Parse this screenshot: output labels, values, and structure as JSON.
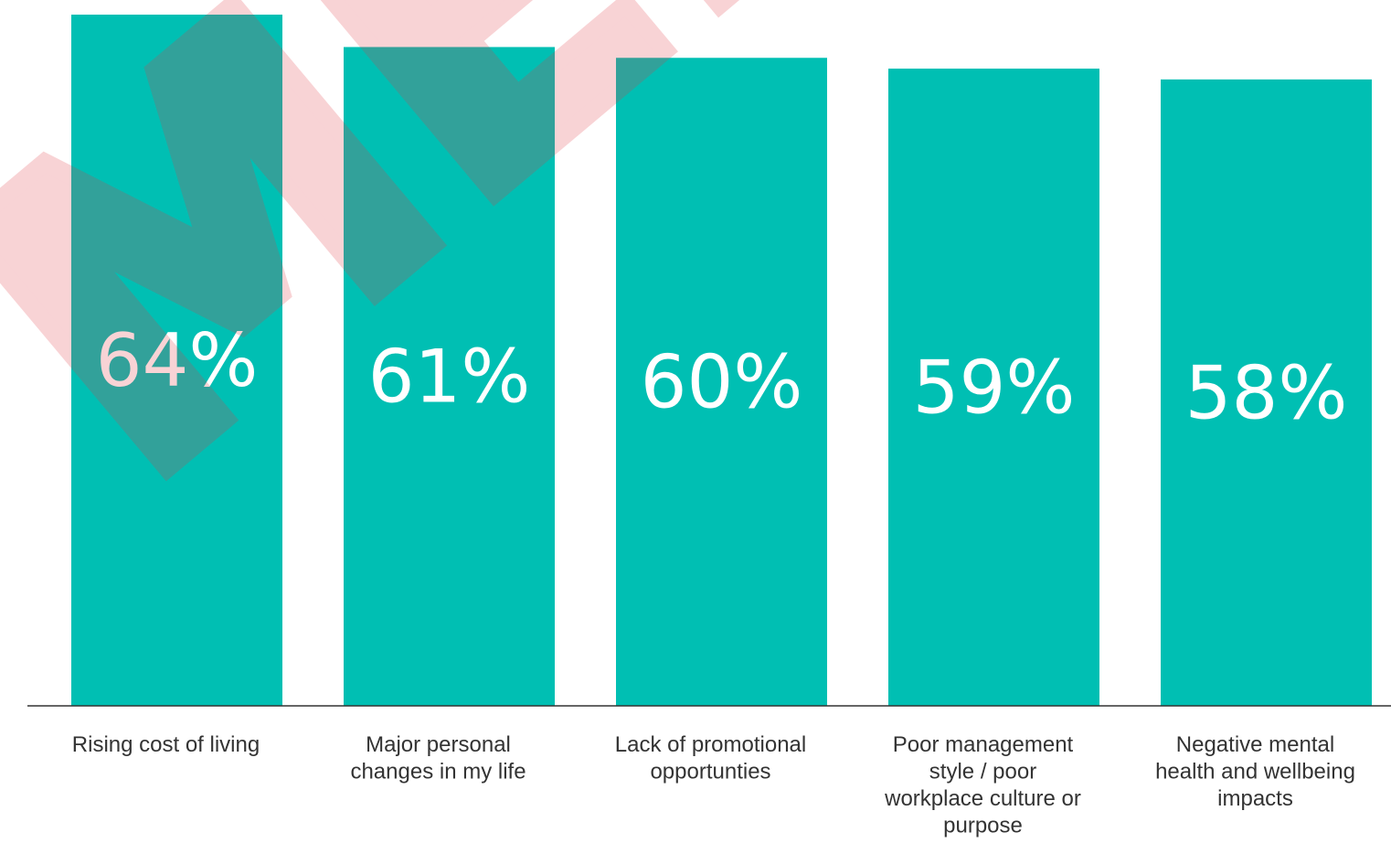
{
  "chart_data": {
    "type": "bar",
    "title": "",
    "xlabel": "",
    "ylabel": "",
    "categories": [
      "Rising cost of living",
      "Major personal changes in my life",
      "Lack of promotional opportunties",
      "Poor management style / poor workplace culture or purpose",
      "Negative mental health and wellbeing impacts"
    ],
    "values": [
      64,
      61,
      60,
      59,
      58
    ],
    "value_labels": [
      "64%",
      "61%",
      "60%",
      "59%",
      "58%"
    ],
    "category_label_lines": [
      [
        "Rising cost of living"
      ],
      [
        "Major personal",
        "changes in my life"
      ],
      [
        "Lack of promotional",
        "opportunties"
      ],
      [
        "Poor management",
        "style / poor",
        "workplace culture or",
        "purpose"
      ],
      [
        "Negative mental",
        "health and wellbeing",
        "impacts"
      ]
    ],
    "grid": false,
    "legend": "none",
    "ylim": [
      0,
      64
    ]
  },
  "colors": {
    "bar": "#00BFB3",
    "baseline": "#333333",
    "label_text": "#333333",
    "value_text": "#ffffff",
    "watermark": "#E23A44"
  },
  "watermark": {
    "text": "MED"
  }
}
